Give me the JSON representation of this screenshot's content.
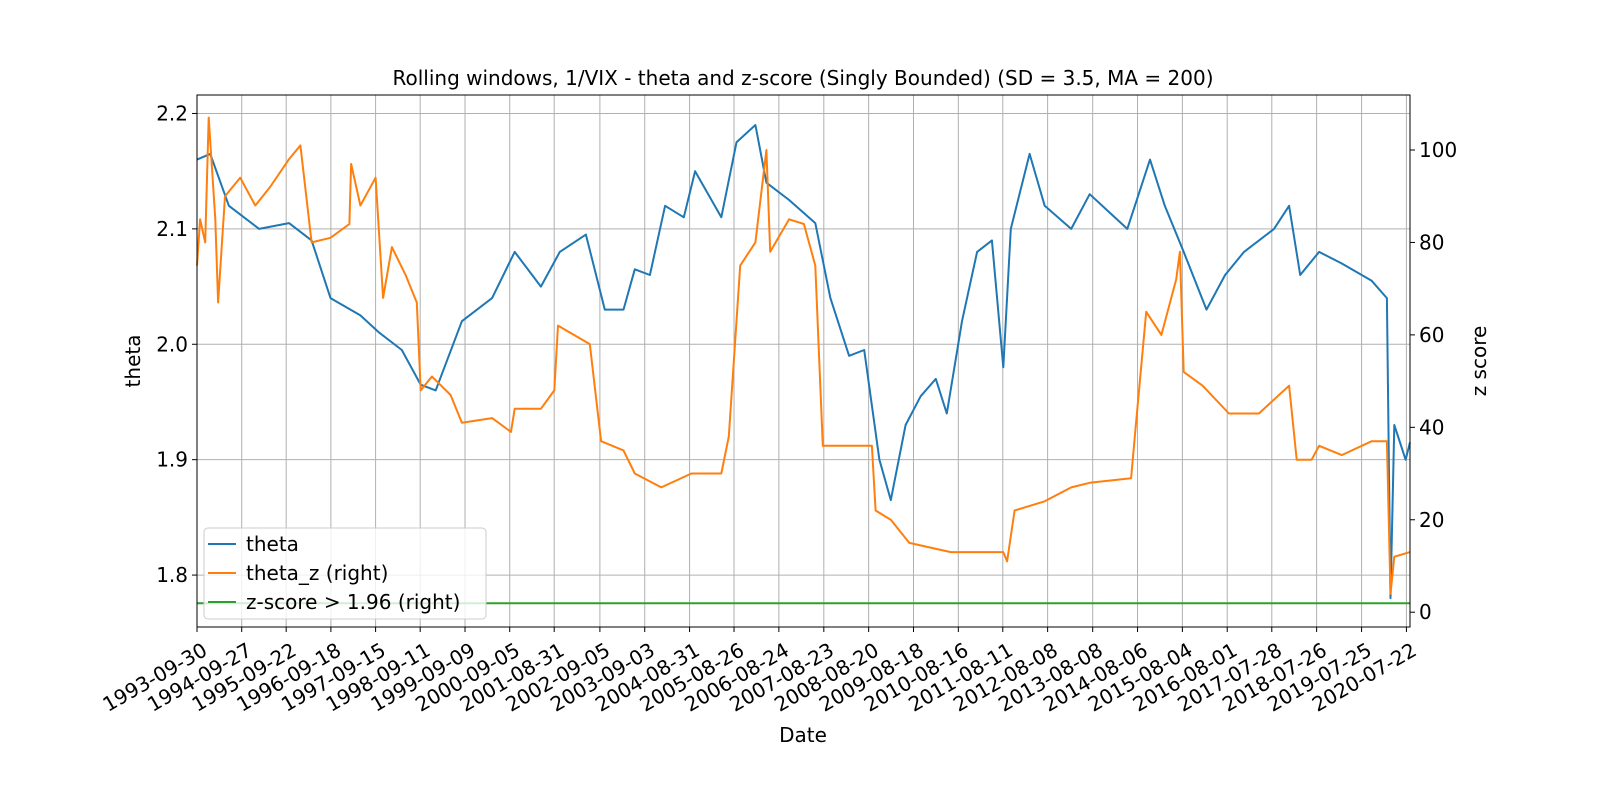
{
  "chart_data": {
    "type": "line",
    "title": "Rolling windows, 1/VIX - theta and z-score (Singly Bounded) (SD = 3.5, MA = 200)",
    "x_label": "Date",
    "y_label": "theta",
    "y2_label": "z score",
    "xlim": [
      "1993-09-30",
      "2020-08-20"
    ],
    "xticks": [
      "1993-09-30",
      "1994-09-27",
      "1995-09-22",
      "1996-09-18",
      "1997-09-15",
      "1998-09-11",
      "1999-09-09",
      "2000-09-05",
      "2001-08-31",
      "2002-09-05",
      "2003-09-03",
      "2004-08-31",
      "2005-08-26",
      "2006-08-24",
      "2007-08-23",
      "2008-08-20",
      "2009-08-18",
      "2010-08-16",
      "2011-08-11",
      "2012-08-08",
      "2013-08-08",
      "2014-08-06",
      "2015-08-04",
      "2016-08-01",
      "2017-07-28",
      "2018-07-26",
      "2019-07-25",
      "2020-07-22"
    ],
    "ylim": [
      1.755,
      2.216
    ],
    "yticks": [
      1.8,
      1.9,
      {
        "value": 2,
        "label": "2.0"
      },
      2.1,
      2.2
    ],
    "y2lim": [
      -3.2,
      111.9
    ],
    "y2ticks": [
      0,
      20,
      40,
      60,
      80,
      100
    ],
    "grid": true,
    "legend": "lower left",
    "series": [
      {
        "name": "theta",
        "color": "#1f77b4",
        "x": [
          "1993-09-30",
          "1994-01-15",
          "1994-06-15",
          "1995-02-15",
          "1995-10-15",
          "1996-04-15",
          "1996-09-15",
          "1997-05-15",
          "1997-10-15",
          "1998-04-15",
          "1998-09-15",
          "1999-01-15",
          "1999-08-15",
          "2000-04-15",
          "2000-10-15",
          "2001-05-15",
          "2001-10-15",
          "2002-05-15",
          "2002-10-15",
          "2003-03-15",
          "2003-06-15",
          "2003-10-15",
          "2004-02-15",
          "2004-07-15",
          "2004-10-15",
          "2005-05-15",
          "2005-09-15",
          "2006-02-15",
          "2006-05-15",
          "2006-11-15",
          "2007-06-15",
          "2007-10-15",
          "2008-03-15",
          "2008-07-15",
          "2008-11-15",
          "2009-02-15",
          "2009-06-15",
          "2009-10-15",
          "2010-02-15",
          "2010-05-15",
          "2010-09-15",
          "2011-01-15",
          "2011-05-15",
          "2011-08-15",
          "2011-10-15",
          "2012-03-15",
          "2012-07-15",
          "2013-02-15",
          "2013-07-15",
          "2013-12-15",
          "2014-05-15",
          "2014-11-15",
          "2015-03-15",
          "2015-08-15",
          "2016-02-15",
          "2016-07-15",
          "2016-12-15",
          "2017-08-15",
          "2017-12-15",
          "2018-03-15",
          "2018-08-15",
          "2019-02-15",
          "2019-10-15",
          "2020-02-15",
          "2020-03-15",
          "2020-04-15",
          "2020-07-15",
          "2020-08-20"
        ],
        "values": [
          2.16,
          2.165,
          2.12,
          2.1,
          2.105,
          2.09,
          2.04,
          2.025,
          2.01,
          1.995,
          1.965,
          1.96,
          2.02,
          2.04,
          2.08,
          2.05,
          2.08,
          2.095,
          2.03,
          2.03,
          2.065,
          2.06,
          2.12,
          2.11,
          2.15,
          2.11,
          2.175,
          2.19,
          2.14,
          2.125,
          2.105,
          2.04,
          1.99,
          1.995,
          1.9,
          1.865,
          1.93,
          1.955,
          1.97,
          1.94,
          2.02,
          2.08,
          2.09,
          1.98,
          2.1,
          2.165,
          2.12,
          2.1,
          2.13,
          2.115,
          2.1,
          2.16,
          2.12,
          2.08,
          2.03,
          2.06,
          2.08,
          2.1,
          2.12,
          2.06,
          2.08,
          2.07,
          2.055,
          2.04,
          1.78,
          1.93,
          1.9,
          1.915
        ]
      },
      {
        "name": "theta_z (right)",
        "color": "#ff7f0e",
        "axis": "y2",
        "x": [
          "1993-09-30",
          "1993-10-25",
          "1993-12-05",
          "1994-01-03",
          "1994-02-25",
          "1994-03-20",
          "1994-05-15",
          "1994-09-15",
          "1995-01-15",
          "1995-05-15",
          "1995-10-15",
          "1996-01-15",
          "1996-04-15",
          "1996-09-15",
          "1997-02-15",
          "1997-03-01",
          "1997-05-15",
          "1997-09-15",
          "1997-11-15",
          "1998-01-25",
          "1998-05-15",
          "1998-08-15",
          "1998-09-15",
          "1998-12-15",
          "1999-05-15",
          "1999-08-15",
          "2000-04-15",
          "2000-09-15",
          "2000-10-15",
          "2001-05-15",
          "2001-09-01",
          "2001-10-01",
          "2002-06-15",
          "2002-09-15",
          "2003-03-15",
          "2003-06-15",
          "2004-01-15",
          "2004-09-15",
          "2005-05-15",
          "2005-07-15",
          "2005-10-15",
          "2006-02-15",
          "2006-05-15",
          "2006-06-15",
          "2006-11-15",
          "2007-03-15",
          "2007-06-15",
          "2007-08-15",
          "2008-01-15",
          "2008-09-15",
          "2008-10-15",
          "2009-02-15",
          "2009-07-15",
          "2010-06-15",
          "2011-08-15",
          "2011-09-15",
          "2011-11-15",
          "2012-07-15",
          "2013-02-15",
          "2013-07-15",
          "2014-06-15",
          "2014-07-15",
          "2014-10-15",
          "2015-02-15",
          "2015-06-15",
          "2015-07-15",
          "2015-08-15",
          "2016-01-15",
          "2016-08-15",
          "2017-04-15",
          "2017-12-15",
          "2018-02-15",
          "2018-06-15",
          "2018-08-15",
          "2019-02-15",
          "2019-10-15",
          "2020-02-15",
          "2020-03-15",
          "2020-04-15",
          "2020-08-20"
        ],
        "values": [
          75,
          85,
          80,
          107,
          85,
          67,
          90,
          94,
          88,
          92,
          98,
          101,
          80,
          81,
          84,
          97,
          88,
          94,
          68,
          79,
          73,
          67,
          48,
          51,
          47,
          41,
          42,
          39,
          44,
          44,
          48,
          62,
          58,
          37,
          35,
          30,
          27,
          30,
          30,
          38,
          75,
          80,
          100,
          78,
          85,
          84,
          75,
          36,
          36,
          36,
          22,
          20,
          15,
          13,
          13,
          11,
          22,
          24,
          27,
          28,
          29,
          38,
          65,
          60,
          72,
          78,
          52,
          49,
          43,
          43,
          49,
          33,
          33,
          36,
          34,
          37,
          37,
          4,
          12,
          13
        ]
      },
      {
        "name": "z-score > 1.96 (right)",
        "color": "#2ca02c",
        "axis": "y2",
        "x": [
          "1993-09-30",
          "2020-08-20"
        ],
        "values": [
          1.96,
          1.96
        ]
      }
    ]
  }
}
